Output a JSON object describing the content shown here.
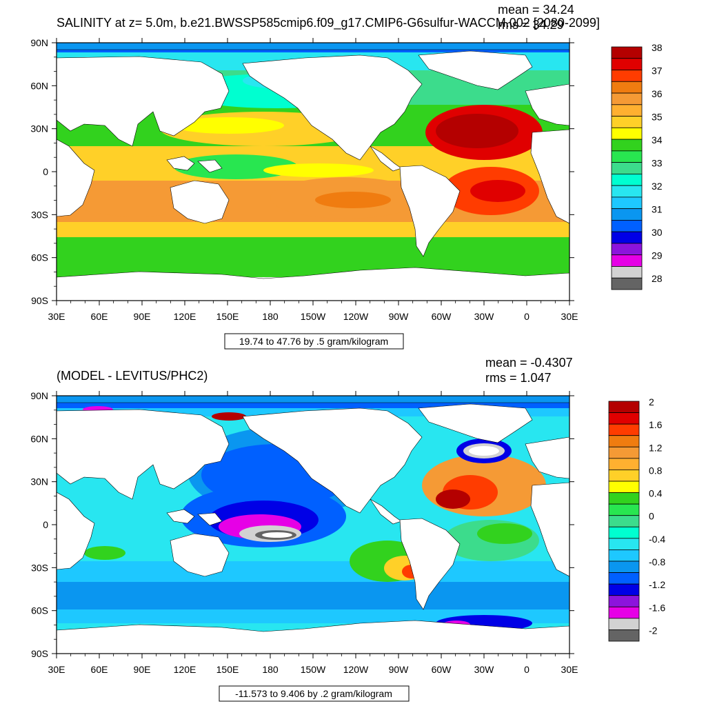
{
  "panels": [
    {
      "title_left": "SALINITY at z=   5.0m, b.e21.BWSSP585cmip6.f09_g17.CMIP6-G6sulfur-WACCM.002 [2080-2099]",
      "mean_text": "mean = 34.24",
      "rms_text": "rms = 34.29",
      "lat_labels": [
        "90N",
        "60N",
        "30N",
        "0",
        "30S",
        "60S",
        "90S"
      ],
      "lon_labels": [
        "30E",
        "60E",
        "90E",
        "120E",
        "150E",
        "180",
        "150W",
        "120W",
        "90W",
        "60W",
        "30W",
        "0",
        "30E"
      ],
      "contour_info": "19.74 to 47.76 by .5 gram/kilogram",
      "colorbar": {
        "labels": [
          "38",
          "37",
          "36",
          "35",
          "34",
          "33",
          "32",
          "31",
          "30",
          "29",
          "28"
        ],
        "colors": [
          "#b40000",
          "#e00000",
          "#ff3c00",
          "#f07c10",
          "#f59a35",
          "#ffb030",
          "#ffd028",
          "#ffff00",
          "#32d21e",
          "#28e650",
          "#3cdc8c",
          "#00ffd0",
          "#28e6f0",
          "#1ec8ff",
          "#0a96f0",
          "#0060ff",
          "#0000e6",
          "#8c14dc",
          "#e600e6",
          "#d2d2d2",
          "#646464"
        ]
      }
    },
    {
      "title_left": "(MODEL - LEVITUS/PHC2)",
      "mean_text": "mean = -0.4307",
      "rms_text": "rms = 1.047",
      "lat_labels": [
        "90N",
        "60N",
        "30N",
        "0",
        "30S",
        "60S",
        "90S"
      ],
      "lon_labels": [
        "30E",
        "60E",
        "90E",
        "120E",
        "150E",
        "180",
        "150W",
        "120W",
        "90W",
        "60W",
        "30W",
        "0",
        "30E"
      ],
      "contour_info": "-11.573 to 9.406 by .2 gram/kilogram",
      "colorbar": {
        "labels": [
          "2",
          "1.6",
          "1.2",
          "0.8",
          "0.4",
          "0",
          "-0.4",
          "-0.8",
          "-1.2",
          "-1.6",
          "-2"
        ],
        "colors": [
          "#b40000",
          "#e00000",
          "#ff3c00",
          "#f07c10",
          "#f59a35",
          "#ffb030",
          "#ffd028",
          "#ffff00",
          "#32d21e",
          "#28e650",
          "#3cdc8c",
          "#00ffd0",
          "#28e6f0",
          "#1ec8ff",
          "#0a96f0",
          "#0060ff",
          "#0000e6",
          "#8c14dc",
          "#e600e6",
          "#d2d2d2",
          "#646464"
        ]
      }
    }
  ],
  "colors": {
    "land": "#ffffff",
    "frame": "#000000"
  }
}
